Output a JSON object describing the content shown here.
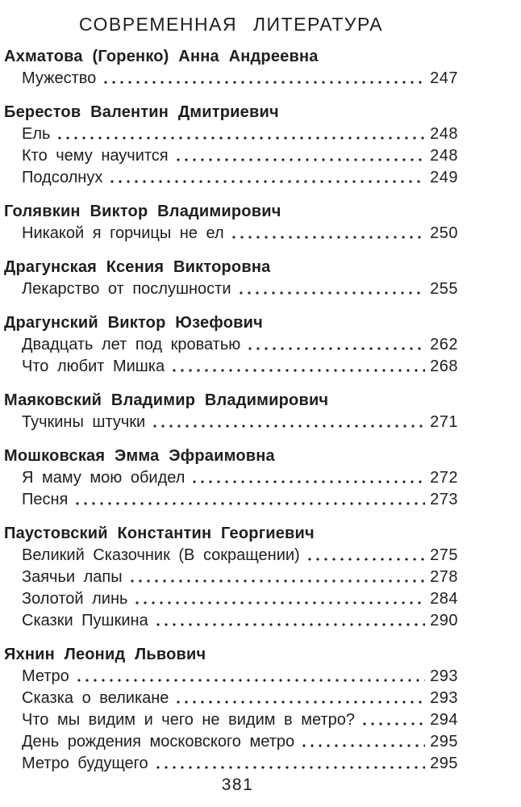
{
  "header": {
    "title": "СОВРЕМЕННАЯ ЛИТЕРАТУРА"
  },
  "footer": {
    "page_number": "381"
  },
  "colors": {
    "background": "#ffffff",
    "text": "#1e1e1e"
  },
  "toc": {
    "groups": [
      {
        "author": "Ахматова (Горенко) Анна Андреевна",
        "entries": [
          {
            "title": "Мужество",
            "page": "247"
          }
        ]
      },
      {
        "author": "Берестов Валентин Дмитриевич",
        "entries": [
          {
            "title": "Ель",
            "page": "248"
          },
          {
            "title": "Кто чему научится",
            "page": "248"
          },
          {
            "title": "Подсолнух",
            "page": "249"
          }
        ]
      },
      {
        "author": "Голявкин Виктор Владимирович",
        "entries": [
          {
            "title": "Никакой я горчицы не ел",
            "page": "250"
          }
        ]
      },
      {
        "author": "Драгунская Ксения Викторовна",
        "entries": [
          {
            "title": "Лекарство от послушности",
            "page": "255"
          }
        ]
      },
      {
        "author": "Драгунский Виктор Юзефович",
        "entries": [
          {
            "title": "Двадцать лет под кроватью",
            "page": "262"
          },
          {
            "title": "Что любит Мишка",
            "page": "268"
          }
        ]
      },
      {
        "author": "Маяковский Владимир Владимирович",
        "entries": [
          {
            "title": "Тучкины штучки",
            "page": "271"
          }
        ]
      },
      {
        "author": "Мошковская Эмма Эфраимовна",
        "entries": [
          {
            "title": "Я маму мою обидел",
            "page": "272"
          },
          {
            "title": "Песня",
            "page": "273"
          }
        ]
      },
      {
        "author": "Паустовский Константин Георгиевич",
        "entries": [
          {
            "title": "Великий Сказочник (В сокращении)",
            "page": "275"
          },
          {
            "title": "Заячьи лапы",
            "page": "278"
          },
          {
            "title": "Золотой линь",
            "page": "284"
          },
          {
            "title": "Сказки Пушкина",
            "page": "290"
          }
        ]
      },
      {
        "author": "Яхнин Леонид Львович",
        "entries": [
          {
            "title": "Метро",
            "page": "293"
          },
          {
            "title": "Сказка о великане",
            "page": "293"
          },
          {
            "title": "Что мы видим и чего не видим в метро?",
            "page": "294"
          },
          {
            "title": "День рождения московского метро",
            "page": "295"
          },
          {
            "title": "Метро будущего",
            "page": "295"
          }
        ]
      }
    ]
  }
}
